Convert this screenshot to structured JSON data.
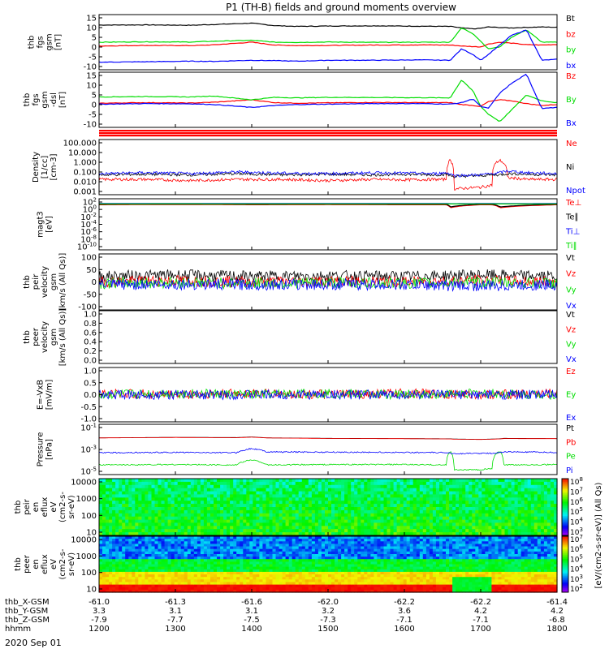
{
  "title": "P1 (TH-B) fields and ground moments overview",
  "date_label": "2020 Sep 01",
  "colors": {
    "black": "#000000",
    "red": "#ff0000",
    "green": "#00dd00",
    "blue": "#0000ff",
    "cyan": "#00c8ff"
  },
  "chart_data": [
    {
      "id": "fgs_gsm",
      "type": "line",
      "ylabel": [
        "thb",
        "fgs",
        "gsm",
        "[nT]"
      ],
      "yticks": [
        "15",
        "10",
        "5",
        "0",
        "-5",
        "-10"
      ],
      "ylim": [
        -13,
        16
      ],
      "legend": [
        {
          "name": "Bt",
          "color": "black"
        },
        {
          "name": "bz",
          "color": "red"
        },
        {
          "name": "by",
          "color": "green"
        },
        {
          "name": "bx",
          "color": "blue"
        }
      ],
      "x": [
        1200,
        1260,
        1320,
        1350,
        1400,
        1430,
        1460,
        1500,
        1560,
        1620,
        1660,
        1675,
        1690,
        1700,
        1710,
        1725,
        1740,
        1760,
        1780,
        1800
      ],
      "series": [
        {
          "name": "Bt",
          "color": "black",
          "values": [
            10.5,
            10.6,
            10.4,
            10.8,
            11.5,
            10.2,
            9.8,
            10.0,
            10.1,
            9.9,
            9.8,
            9.0,
            8.5,
            8.8,
            9.5,
            9.2,
            9.0,
            9.3,
            9.5,
            9.3
          ]
        },
        {
          "name": "bz",
          "color": "red",
          "values": [
            -0.5,
            -0.2,
            -0.3,
            0.1,
            1.5,
            0.0,
            -0.3,
            -0.2,
            0.0,
            0.1,
            0.0,
            -0.5,
            -0.8,
            -1.0,
            0.5,
            1.5,
            1.0,
            0.2,
            0.0,
            0.3
          ]
        },
        {
          "name": "by",
          "color": "green",
          "values": [
            1.5,
            1.7,
            1.6,
            2.0,
            2.5,
            1.5,
            1.4,
            1.6,
            1.4,
            1.5,
            1.5,
            9.0,
            6.0,
            2.0,
            -2.0,
            -1.0,
            4.0,
            8.0,
            1.5,
            1.5
          ]
        },
        {
          "name": "bx",
          "color": "blue",
          "values": [
            -9.0,
            -8.8,
            -8.5,
            -8.6,
            -8.0,
            -8.2,
            -8.5,
            -8.0,
            -8.0,
            -7.8,
            -8.0,
            -2.0,
            -5.0,
            -8.0,
            -5.0,
            0.0,
            5.0,
            8.0,
            -8.0,
            -7.5
          ]
        }
      ]
    },
    {
      "id": "fgs_dsl",
      "type": "line",
      "ylabel": [
        "thb",
        "fgs",
        "gsm",
        "-dsl",
        "[nT]"
      ],
      "yticks": [
        "15",
        "10",
        "5",
        "0",
        "-5",
        "-10"
      ],
      "ylim": [
        -13,
        16
      ],
      "legend": [
        {
          "name": "Bz",
          "color": "red"
        },
        {
          "name": "By",
          "color": "green"
        },
        {
          "name": "Bx",
          "color": "blue"
        }
      ],
      "x": [
        1200,
        1260,
        1320,
        1350,
        1400,
        1430,
        1460,
        1500,
        1560,
        1620,
        1660,
        1675,
        1690,
        1700,
        1710,
        1725,
        1740,
        1760,
        1780,
        1800
      ],
      "series": [
        {
          "name": "Bz",
          "color": "red",
          "values": [
            -0.3,
            0.0,
            -0.2,
            0.2,
            1.5,
            0.0,
            -0.3,
            -0.1,
            0.1,
            0.0,
            0.0,
            -1.0,
            -1.5,
            -2.0,
            0.5,
            1.5,
            1.0,
            -0.5,
            -1.5,
            -1.0
          ]
        },
        {
          "name": "By",
          "color": "green",
          "values": [
            3.0,
            3.2,
            3.0,
            3.5,
            1.5,
            2.8,
            2.5,
            2.8,
            2.7,
            2.6,
            2.5,
            12.0,
            6.0,
            -2.0,
            -6.0,
            -10.0,
            -4.0,
            4.0,
            1.0,
            0.0
          ]
        },
        {
          "name": "Bx",
          "color": "blue",
          "values": [
            -0.8,
            -0.5,
            -0.6,
            -1.0,
            -2.5,
            -1.5,
            -1.0,
            -0.8,
            -0.5,
            -0.5,
            -0.8,
            0.0,
            2.0,
            -2.0,
            -3.0,
            5.0,
            10.0,
            15.0,
            -3.0,
            -2.5
          ]
        }
      ]
    },
    {
      "id": "density",
      "type": "line",
      "log": true,
      "ylabel": [
        "Density",
        "[1/cc]",
        "[cm-3]"
      ],
      "yticks": [
        "100.000",
        "10.000",
        "1.000",
        "0.100",
        "0.010",
        "0.001"
      ],
      "ylim": [
        0.0005,
        300
      ],
      "legend": [
        {
          "name": "Ne",
          "color": "red"
        },
        {
          "name": "Ni",
          "color": "black"
        },
        {
          "name": "Npot",
          "color": "blue"
        }
      ],
      "x": [
        1200,
        1260,
        1320,
        1380,
        1440,
        1500,
        1560,
        1600,
        1640,
        1655,
        1660,
        1665,
        1700,
        1715,
        1725,
        1735,
        1760,
        1800
      ],
      "series": [
        {
          "name": "Ne",
          "color": "red",
          "values": [
            0.02,
            0.02,
            0.015,
            0.02,
            0.02,
            0.015,
            0.02,
            0.018,
            0.02,
            0.02,
            2,
            0.002,
            0.003,
            0.005,
            2,
            0.03,
            0.02,
            0.02
          ]
        },
        {
          "name": "Ni",
          "color": "black",
          "values": [
            0.06,
            0.07,
            0.06,
            0.08,
            0.06,
            0.07,
            0.06,
            0.07,
            0.06,
            0.07,
            0.05,
            0.04,
            0.05,
            0.06,
            0.06,
            0.08,
            0.07,
            0.06
          ]
        },
        {
          "name": "Npot",
          "color": "blue",
          "values": [
            0.08,
            0.1,
            0.08,
            0.12,
            0.09,
            0.08,
            0.1,
            0.09,
            0.08,
            0.1,
            0.08,
            0.05,
            0.06,
            0.08,
            0.1,
            0.15,
            0.1,
            0.08
          ]
        }
      ]
    },
    {
      "id": "temps",
      "type": "line",
      "log": true,
      "ylabel": [
        "magt3",
        "[eV]"
      ],
      "yticks": [
        "10^2",
        "10^0",
        "10^-2",
        "10^-4",
        "10^-6",
        "10^-8",
        "10^-10"
      ],
      "ylim": [
        1e-10,
        1000
      ],
      "legend": [
        {
          "name": "Te⊥",
          "color": "red"
        },
        {
          "name": "Te∥",
          "color": "black"
        },
        {
          "name": "Ti⊥",
          "color": "blue"
        },
        {
          "name": "Ti∥",
          "color": "green"
        }
      ],
      "x": [
        1200,
        1300,
        1400,
        1500,
        1600,
        1655,
        1660,
        1700,
        1715,
        1725,
        1800
      ],
      "series": [
        {
          "name": "Te⊥",
          "color": "red",
          "values": [
            30,
            35,
            30,
            32,
            30,
            30,
            5,
            30,
            30,
            5,
            30
          ]
        },
        {
          "name": "Te∥",
          "color": "black",
          "values": [
            40,
            42,
            40,
            41,
            40,
            40,
            8,
            40,
            40,
            8,
            40
          ]
        },
        {
          "name": "Ti⊥",
          "color": "blue",
          "values": [
            60,
            65,
            60,
            62,
            60,
            60,
            55,
            60,
            60,
            58,
            60
          ]
        },
        {
          "name": "Ti∥",
          "color": "green",
          "values": [
            50,
            52,
            50,
            51,
            50,
            50,
            48,
            50,
            50,
            48,
            50
          ]
        }
      ]
    },
    {
      "id": "vel_ion",
      "type": "line",
      "ylabel": [
        "thb",
        "peir",
        "velocity",
        "gsm",
        "[km/s (All Qs)]"
      ],
      "yticks": [
        "100",
        "50",
        "0",
        "-50",
        "-100"
      ],
      "ylim": [
        -100,
        100
      ],
      "legend": [
        {
          "name": "Vt",
          "color": "black"
        },
        {
          "name": "Vz",
          "color": "red"
        },
        {
          "name": "Vy",
          "color": "green"
        },
        {
          "name": "Vx",
          "color": "blue"
        }
      ],
      "x": [
        1200,
        1300,
        1400,
        1500,
        1600,
        1700,
        1800
      ],
      "series": [
        {
          "name": "Vt",
          "color": "black",
          "values": [
            20,
            25,
            20,
            22,
            20,
            25,
            20
          ]
        },
        {
          "name": "Vz",
          "color": "red",
          "values": [
            0,
            5,
            0,
            2,
            0,
            5,
            0
          ]
        },
        {
          "name": "Vy",
          "color": "green",
          "values": [
            -5,
            -2,
            -5,
            -3,
            -5,
            -2,
            -5
          ]
        },
        {
          "name": "Vx",
          "color": "blue",
          "values": [
            -10,
            -8,
            -10,
            -9,
            -10,
            -15,
            -10
          ]
        }
      ]
    },
    {
      "id": "vel_elec",
      "type": "line",
      "ylabel": [
        "thb",
        "peer",
        "velocity",
        "gsm",
        "[km/s (All Qs)]"
      ],
      "yticks": [
        "1.0",
        "0.8",
        "0.6",
        "0.4",
        "0.2",
        "0.0"
      ],
      "ylim": [
        0,
        1
      ],
      "legend": [
        {
          "name": "Vt",
          "color": "black"
        },
        {
          "name": "Vz",
          "color": "red"
        },
        {
          "name": "Vy",
          "color": "green"
        },
        {
          "name": "Vx",
          "color": "blue"
        }
      ],
      "series": []
    },
    {
      "id": "efield",
      "type": "line",
      "ylabel": [
        "E=-VxB",
        "[mV/m]"
      ],
      "yticks": [
        "1.0",
        "0.5",
        "0.0",
        "-0.5",
        "-1.0"
      ],
      "ylim": [
        -1,
        1
      ],
      "legend": [
        {
          "name": "Ez",
          "color": "red"
        },
        {
          "name": "Ey",
          "color": "green"
        },
        {
          "name": "Ex",
          "color": "blue"
        }
      ],
      "x": [
        1200,
        1300,
        1400,
        1500,
        1600,
        1700,
        1800
      ],
      "series": [
        {
          "name": "Ez",
          "color": "red",
          "values": [
            0.05,
            0.0,
            0.05,
            0.0,
            0.05,
            0.0,
            0.05
          ]
        },
        {
          "name": "Ey",
          "color": "green",
          "values": [
            0.0,
            0.05,
            0.0,
            0.05,
            0.0,
            0.05,
            0.0
          ]
        },
        {
          "name": "Ex",
          "color": "blue",
          "values": [
            0.0,
            0.0,
            0.0,
            0.0,
            0.0,
            0.0,
            0.0
          ]
        }
      ]
    },
    {
      "id": "pressure",
      "type": "line",
      "log": true,
      "ylabel": [
        "Pressure",
        "[nPa]"
      ],
      "yticks": [
        "10^-1",
        "10^-3",
        "10^-5"
      ],
      "ylim": [
        1e-05,
        1
      ],
      "legend": [
        {
          "name": "Pt",
          "color": "black"
        },
        {
          "name": "Pb",
          "color": "red"
        },
        {
          "name": "Pe",
          "color": "green"
        },
        {
          "name": "Pi",
          "color": "blue"
        }
      ],
      "x": [
        1200,
        1300,
        1380,
        1400,
        1420,
        1500,
        1600,
        1655,
        1660,
        1665,
        1700,
        1715,
        1725,
        1730,
        1800
      ],
      "series": [
        {
          "name": "Pt",
          "color": "black",
          "values": [
            0.045,
            0.05,
            0.048,
            0.055,
            0.045,
            0.04,
            0.038,
            0.036,
            0.036,
            0.034,
            0.032,
            0.034,
            0.036,
            0.04,
            0.038
          ]
        },
        {
          "name": "Pb",
          "color": "red",
          "values": [
            0.044,
            0.049,
            0.046,
            0.052,
            0.044,
            0.039,
            0.037,
            0.035,
            0.035,
            0.033,
            0.031,
            0.033,
            0.035,
            0.038,
            0.037
          ]
        },
        {
          "name": "Pe",
          "color": "green",
          "values": [
            9e-05,
            0.0001,
            9e-05,
            0.0003,
            9e-05,
            0.0001,
            0.0001,
            9e-05,
            0.002,
            3e-05,
            3e-05,
            4e-05,
            0.002,
            9e-05,
            0.0001
          ]
        },
        {
          "name": "Pi",
          "color": "blue",
          "values": [
            0.0015,
            0.0016,
            0.0015,
            0.004,
            0.0018,
            0.0017,
            0.0016,
            0.0015,
            0.0015,
            0.0012,
            0.0013,
            0.0013,
            0.0015,
            0.0018,
            0.0016
          ]
        }
      ]
    },
    {
      "id": "ion_spec",
      "type": "heatmap",
      "ylabel": [
        "thb",
        "peir",
        "en",
        "eflux",
        "eV",
        "(cm2-s-",
        "sr-eV)"
      ],
      "yticks": [
        "10000",
        "1000",
        "100",
        "10"
      ],
      "ylim": [
        10,
        20000
      ]
    },
    {
      "id": "elec_spec",
      "type": "heatmap",
      "ylabel": [
        "thb",
        "peer",
        "en",
        "eflux",
        "eV",
        "(cm2-s-",
        "sr-eV)"
      ],
      "yticks": [
        "10000",
        "1000",
        "100",
        "10"
      ],
      "ylim": [
        10,
        20000
      ]
    }
  ],
  "colorbar": {
    "label": "[eV/(cm2-s-sr-eV)] (All Qs)",
    "ion_ticks": [
      "10^8",
      "10^7",
      "10^6",
      "10^5",
      "10^4",
      "10^3"
    ],
    "elec_ticks": [
      "10^7",
      "10^6",
      "10^5",
      "10^4",
      "10^3",
      "10^2"
    ]
  },
  "x_axis": {
    "xlim": [
      1200,
      1800
    ],
    "row_labels": [
      "thb_X-GSM",
      "thb_Y-GSM",
      "thb_Z-GSM",
      "hhmm"
    ],
    "columns": [
      {
        "x": 1200,
        "vals": [
          "-61.0",
          "3.3",
          "-7.9",
          "1200"
        ]
      },
      {
        "x": 1300,
        "vals": [
          "-61.3",
          "3.1",
          "-7.7",
          "1300"
        ]
      },
      {
        "x": 1400,
        "vals": [
          "-61.6",
          "3.1",
          "-7.5",
          "1400"
        ]
      },
      {
        "x": 1500,
        "vals": [
          "-62.0",
          "3.2",
          "-7.3",
          "1500"
        ]
      },
      {
        "x": 1600,
        "vals": [
          "-62.2",
          "3.6",
          "-7.1",
          "1600"
        ]
      },
      {
        "x": 1700,
        "vals": [
          "-62.2",
          "4.2",
          "-7.1",
          "1700"
        ]
      },
      {
        "x": 1800,
        "vals": [
          "-61.4",
          "4.2",
          "-6.8",
          "1800"
        ]
      }
    ]
  }
}
